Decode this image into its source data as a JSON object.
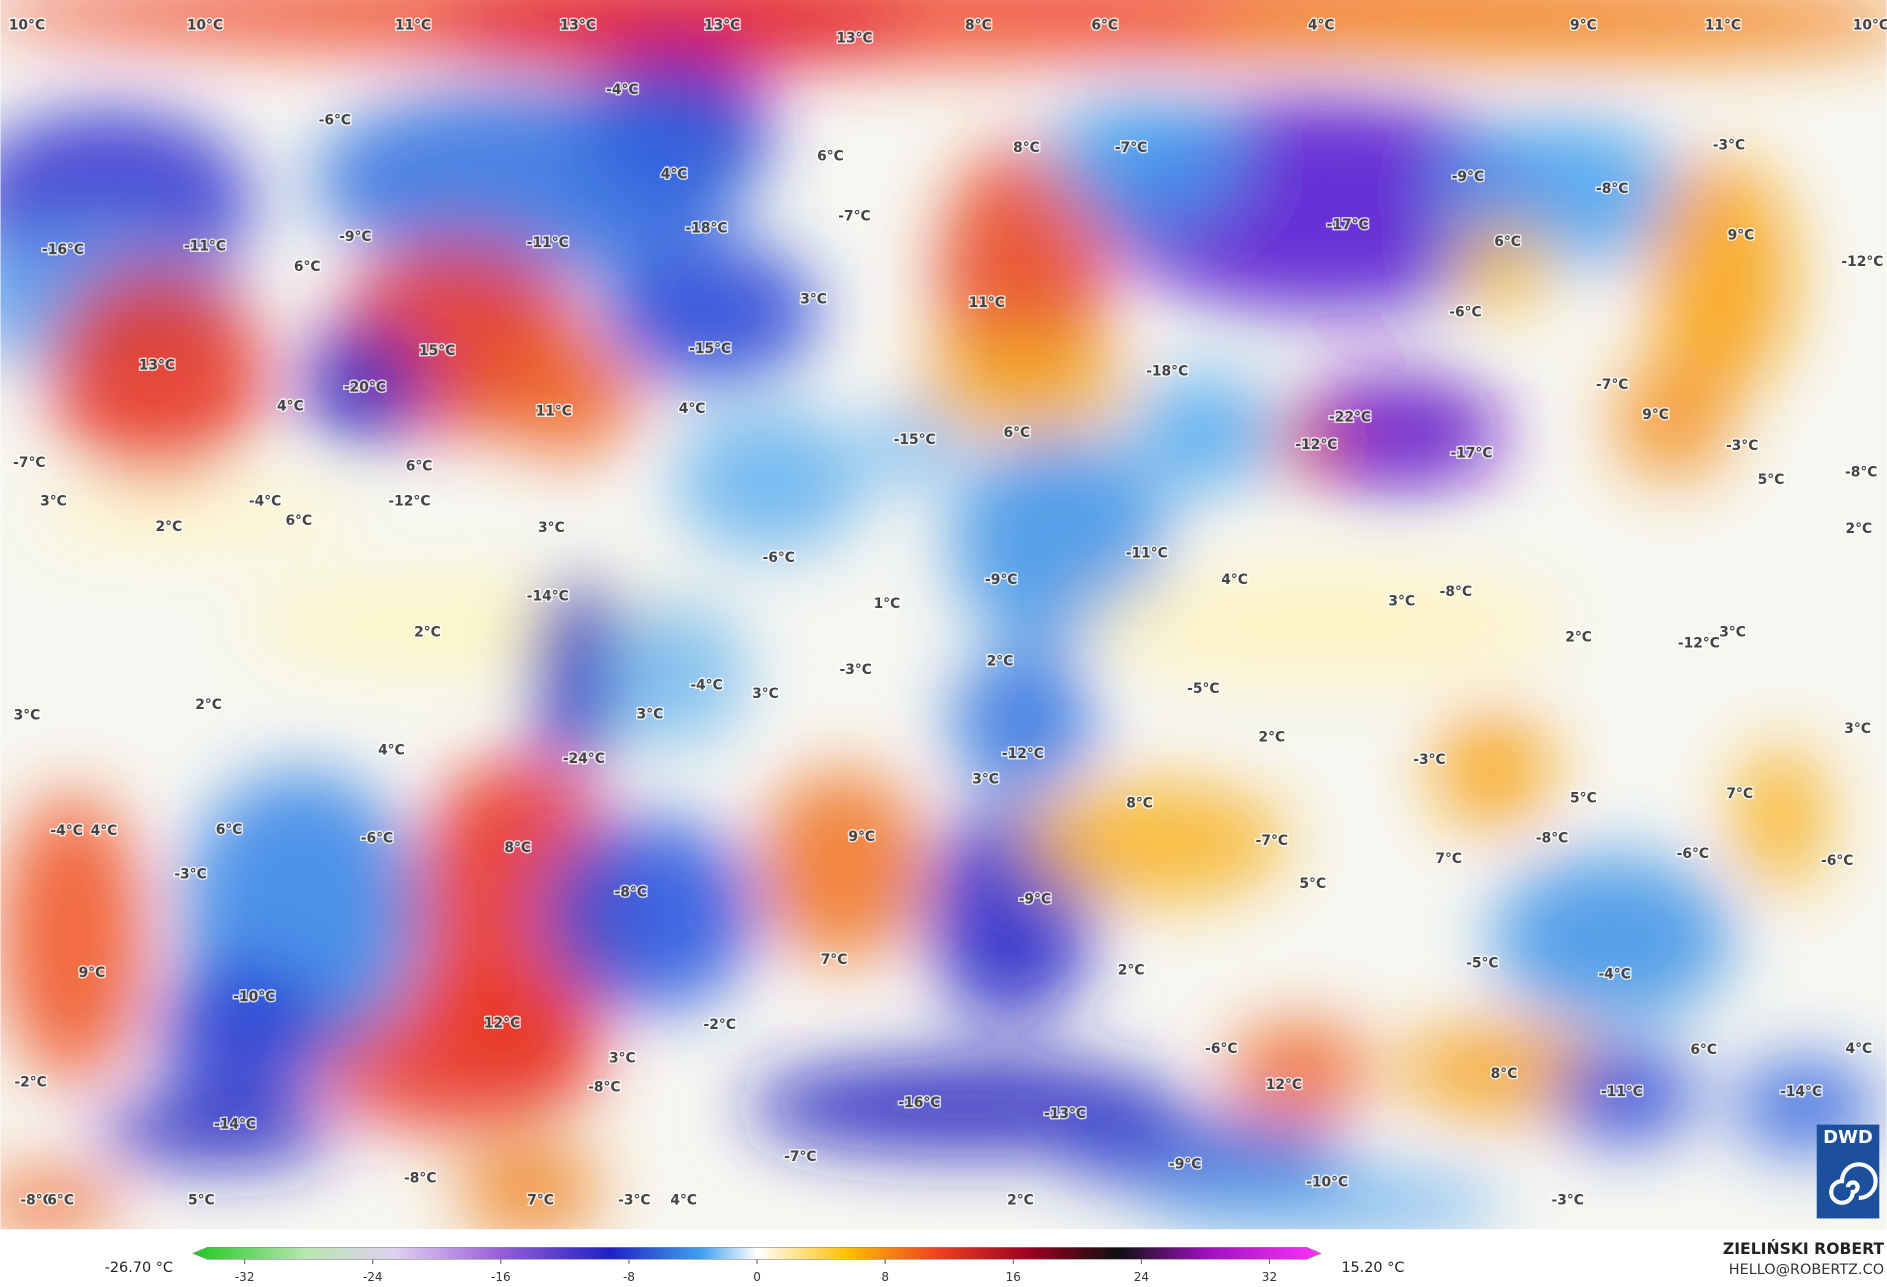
{
  "map": {
    "labels": [
      "10°C",
      "10°C",
      "11°C",
      "13°C",
      "13°C",
      "8°C",
      "6°C",
      "4°C",
      "9°C",
      "11°C",
      "10°C",
      "13°C",
      "-4°C",
      "-6°C",
      "6°C",
      "8°C",
      "-7°C",
      "-3°C",
      "4°C",
      "-9°C",
      "-8°C",
      "-17°C",
      "-18°C",
      "-7°C",
      "-9°C",
      "-11°C",
      "-11°C",
      "-16°C",
      "6°C",
      "9°C",
      "-12°C",
      "6°C",
      "3°C",
      "11°C",
      "-6°C",
      "13°C",
      "15°C",
      "-15°C",
      "-20°C",
      "-18°C",
      "-7°C",
      "4°C",
      "11°C",
      "4°C",
      "6°C",
      "-22°C",
      "9°C",
      "-15°C",
      "-12°C",
      "-17°C",
      "-3°C",
      "-7°C",
      "6°C",
      "-8°C",
      "5°C",
      "3°C",
      "-4°C",
      "-12°C",
      "6°C",
      "2°C",
      "3°C",
      "2°C",
      "-6°C",
      "-11°C",
      "4°C",
      "-9°C",
      "-14°C",
      "1°C",
      "3°C",
      "-8°C",
      "2°C",
      "2°C",
      "3°C",
      "-12°C",
      "-3°C",
      "2°C",
      "-4°C",
      "3°C",
      "-5°C",
      "2°C",
      "3°C",
      "3°C",
      "2°C",
      "3°C",
      "4°C",
      "-24°C",
      "-12°C",
      "-3°C",
      "3°C",
      "5°C",
      "7°C",
      "8°C",
      "-4°C",
      "4°C",
      "6°C",
      "-6°C",
      "9°C",
      "-7°C",
      "-8°C",
      "-6°C",
      "-6°C",
      "8°C",
      "-3°C",
      "7°C",
      "5°C",
      "-8°C",
      "-9°C",
      "7°C",
      "9°C",
      "2°C",
      "-5°C",
      "-4°C",
      "-10°C",
      "12°C",
      "-2°C",
      "-6°C",
      "6°C",
      "4°C",
      "3°C",
      "-2°C",
      "-8°C",
      "12°C",
      "8°C",
      "-11°C",
      "-14°C",
      "-16°C",
      "-13°C",
      "-14°C",
      "-7°C",
      "-9°C",
      "-10°C",
      "-8°C",
      "-8°C",
      "6°C",
      "5°C",
      "7°C",
      "-3°C",
      "4°C",
      "2°C",
      "-3°C"
    ],
    "colorbar": {
      "ticks": [
        -32,
        -24,
        -16,
        -8,
        0,
        8,
        16,
        24,
        32
      ],
      "min_label": "-26.70 °C",
      "max_label": "15.20 °C"
    },
    "credit": {
      "name": "ZIELIŃSKI ROBERT",
      "email": "HELLO@ROBERTZ.CO"
    },
    "logo": "DWD"
  }
}
